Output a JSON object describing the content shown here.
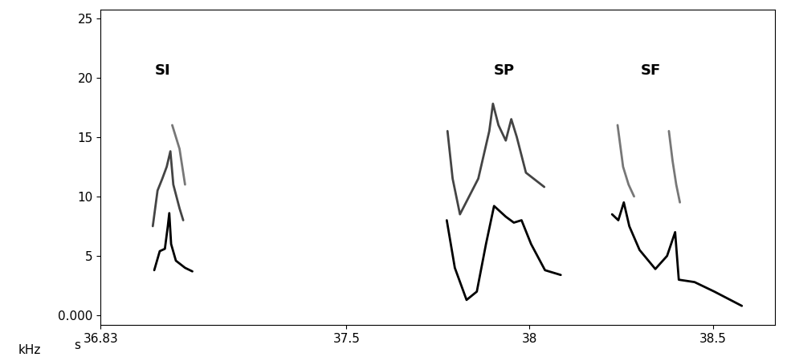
{
  "chart_data": {
    "type": "line",
    "xlabel": "s",
    "ylabel": "kHz",
    "xlim": [
      36.83,
      38.67
    ],
    "xticks": [
      36.83,
      37.5,
      38,
      38.5
    ],
    "ylim": [
      -0.8,
      25.7
    ],
    "yticks": [
      {
        "value": 0,
        "label": "0.000"
      },
      5,
      10,
      15,
      20,
      25
    ],
    "grid": false,
    "annotations": [
      {
        "text": "SI",
        "x": 37.0,
        "y": 20
      },
      {
        "text": "SP",
        "x": 37.93,
        "y": 20
      },
      {
        "text": "SF",
        "x": 38.33,
        "y": 20
      }
    ],
    "series": [
      {
        "color": "#000000",
        "x": [
          36.976,
          36.991,
          37.005,
          37.013,
          37.017,
          37.022,
          37.035,
          37.06,
          37.08
        ],
        "values": [
          3.8,
          5.4,
          5.6,
          7.5,
          8.6,
          6.0,
          4.6,
          4.0,
          3.7
        ]
      },
      {
        "color": "#444444",
        "x": [
          36.972,
          36.985,
          36.998,
          37.01,
          37.02,
          37.028,
          37.045,
          37.055
        ],
        "values": [
          7.5,
          10.5,
          11.5,
          12.5,
          13.8,
          11.0,
          9.0,
          8.0
        ]
      },
      {
        "color": "#777777",
        "x": [
          37.025,
          37.035,
          37.045,
          37.06
        ],
        "values": [
          16.0,
          15.0,
          14.0,
          11.0
        ]
      },
      {
        "color": "#000000",
        "x": [
          37.774,
          37.796,
          37.828,
          37.856,
          37.881,
          37.903,
          37.935,
          37.957,
          37.978,
          38.004,
          38.042,
          38.085
        ],
        "values": [
          8.0,
          4.0,
          1.3,
          2.0,
          6.0,
          9.2,
          8.3,
          7.8,
          8.0,
          6.0,
          3.8,
          3.4
        ]
      },
      {
        "color": "#444444",
        "x": [
          37.776,
          37.79,
          37.81,
          37.86,
          37.89,
          37.9,
          37.915,
          37.935,
          37.95,
          37.965,
          37.99,
          38.04
        ],
        "values": [
          15.5,
          11.5,
          8.5,
          11.5,
          15.5,
          17.8,
          16.0,
          14.7,
          16.5,
          15.0,
          12.0,
          10.8
        ]
      },
      {
        "color": "#000000",
        "x": [
          38.225,
          38.242,
          38.257,
          38.272,
          38.3,
          38.343,
          38.375,
          38.397,
          38.407,
          38.45,
          38.504,
          38.579
        ],
        "values": [
          8.5,
          8.0,
          9.5,
          7.5,
          5.5,
          3.9,
          5.0,
          7.0,
          3.0,
          2.8,
          2.0,
          0.8
        ]
      },
      {
        "color": "#777777",
        "x": [
          38.24,
          38.255,
          38.27,
          38.285
        ],
        "values": [
          16.0,
          12.5,
          11.0,
          10.0
        ]
      },
      {
        "color": "#777777",
        "x": [
          38.38,
          38.39,
          38.4,
          38.41
        ],
        "values": [
          15.5,
          13.0,
          11.0,
          9.5
        ]
      }
    ]
  }
}
